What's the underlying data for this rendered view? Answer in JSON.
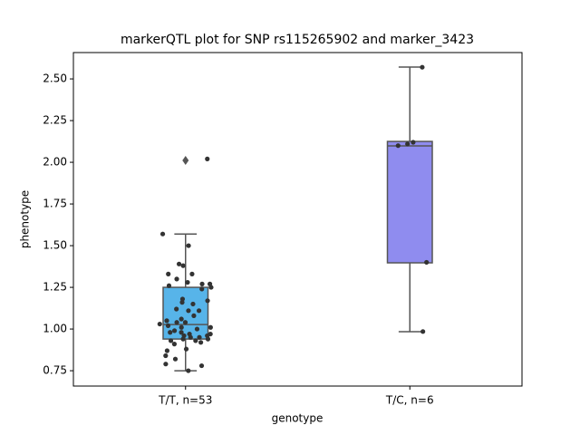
{
  "chart_data": {
    "type": "box",
    "title": "markerQTL plot for SNP rs115265902 and marker_3423",
    "xlabel": "genotype",
    "ylabel": "phenotype",
    "categories": [
      "T/T, n=53",
      "T/C, n=6"
    ],
    "ylim": [
      0.658,
      2.658
    ],
    "yticks": [
      {
        "value": 0.75,
        "label": "0.75"
      },
      {
        "value": 1.0,
        "label": "1.00"
      },
      {
        "value": 1.25,
        "label": "1.25"
      },
      {
        "value": 1.5,
        "label": "1.50"
      },
      {
        "value": 1.75,
        "label": "1.75"
      },
      {
        "value": 2.0,
        "label": "2.00"
      },
      {
        "value": 2.25,
        "label": "2.25"
      },
      {
        "value": 2.5,
        "label": "2.50"
      }
    ],
    "boxes": [
      {
        "color": "#57b4e9",
        "whislo": 0.75,
        "q1": 0.94,
        "med": 1.027,
        "q3": 1.25,
        "whishi": 1.57,
        "fliers": [
          2.011
        ]
      },
      {
        "color": "#8f8cef",
        "whislo": 0.984,
        "q1": 1.397,
        "med": 2.098,
        "q3": 2.125,
        "whishi": 2.571,
        "fliers": []
      }
    ],
    "point_color": "#333333",
    "points": [
      [
        2.02,
        1.57,
        1.5,
        1.39,
        1.38,
        1.33,
        1.33,
        1.3,
        1.28,
        1.27,
        1.27,
        1.26,
        1.25,
        1.24,
        1.18,
        1.17,
        1.16,
        1.15,
        1.12,
        1.11,
        1.11,
        1.08,
        1.06,
        1.05,
        1.04,
        1.04,
        1.03,
        1.02,
        1.01,
        1.01,
        1.0,
        0.99,
        0.98,
        0.98,
        0.97,
        0.97,
        0.96,
        0.96,
        0.95,
        0.95,
        0.94,
        0.94,
        0.93,
        0.93,
        0.92,
        0.91,
        0.88,
        0.87,
        0.84,
        0.82,
        0.79,
        0.78,
        0.75
      ],
      [
        2.57,
        2.12,
        2.11,
        2.1,
        1.4,
        0.985
      ]
    ]
  }
}
